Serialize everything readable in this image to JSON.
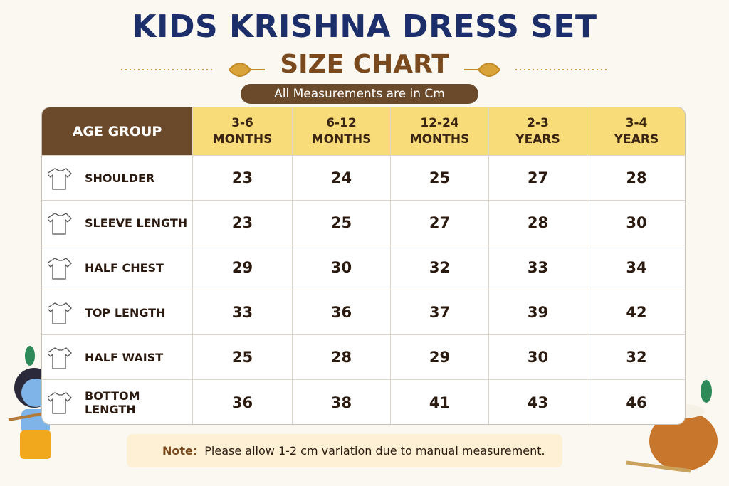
{
  "header": {
    "title": "KIDS KRISHNA DRESS SET",
    "subtitle": "SIZE CHART",
    "unit_note": "All Measurements are in Cm"
  },
  "table": {
    "corner": "AGE GROUP",
    "columns": [
      {
        "range": "3-6",
        "unit": "MONTHS"
      },
      {
        "range": "6-12",
        "unit": "MONTHS"
      },
      {
        "range": "12-24",
        "unit": "MONTHS"
      },
      {
        "range": "2-3",
        "unit": "YEARS"
      },
      {
        "range": "3-4",
        "unit": "YEARS"
      }
    ],
    "rows": [
      {
        "label": "SHOULDER",
        "values": [
          23,
          24,
          25,
          27,
          28
        ]
      },
      {
        "label": "SLEEVE LENGTH",
        "values": [
          23,
          25,
          27,
          28,
          30
        ]
      },
      {
        "label": "HALF CHEST",
        "values": [
          29,
          30,
          32,
          33,
          34
        ]
      },
      {
        "label": "TOP LENGTH",
        "values": [
          33,
          36,
          37,
          39,
          42
        ]
      },
      {
        "label": "HALF WAIST",
        "values": [
          25,
          28,
          29,
          30,
          32
        ]
      },
      {
        "label": "BOTTOM LENGTH",
        "values": [
          36,
          38,
          41,
          43,
          46
        ]
      }
    ]
  },
  "note": {
    "label": "Note:",
    "text": "Please allow 1-2 cm variation due to manual measurement."
  }
}
